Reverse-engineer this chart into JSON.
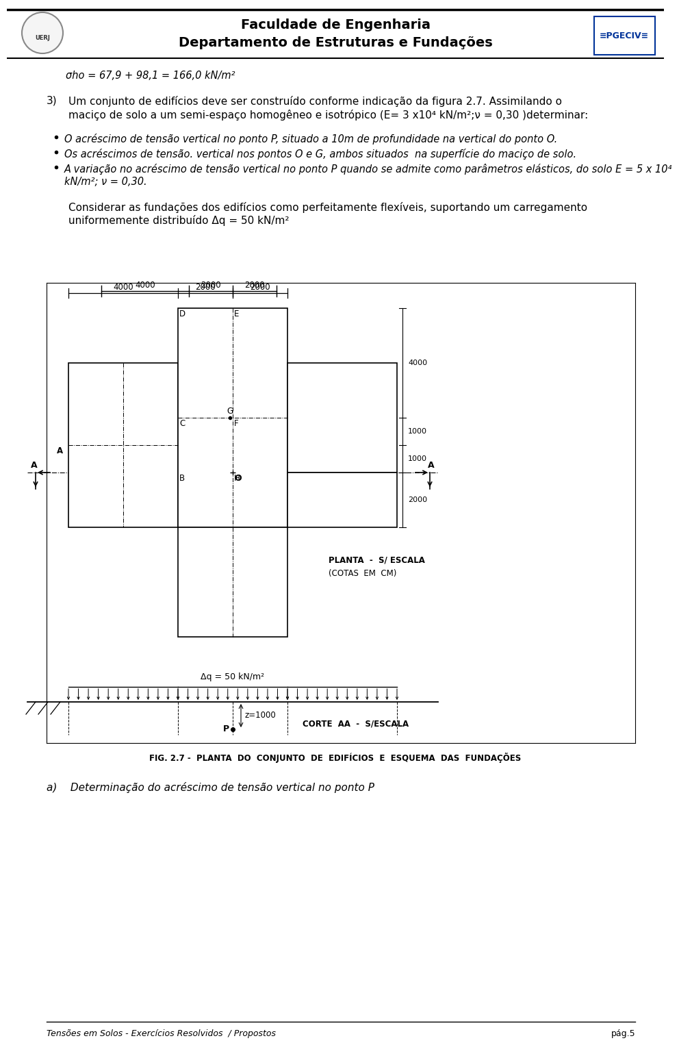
{
  "bg_color": "#ffffff",
  "header_title1": "Faculdade de Engenharia",
  "header_title2": "Departamento de Estruturas e Fundações",
  "footer_text_left": "Tensões em Solos - Exercícios Resolvidos  / Propostos",
  "footer_text_right": "pág.5",
  "sigma_line": "σho = 67,9 + 98,1 = 166,0 kN/m²",
  "problem_number": "3)",
  "problem_text1": "Um conjunto de edifícios deve ser construído conforme indicação da figura 2.7. Assimilando o",
  "problem_text2": "maciço de solo a um semi-espaço homogêneo e isotrópico (E= 3 x10⁴ kN/m²;ν = 0,30 )determinar:",
  "bullet1": "O acréscimo de tensão vertical no ponto P, situado a 10m de profundidade na vertical do ponto O.",
  "bullet2": "Os acréscimos de tensão. vertical nos pontos O e G, ambos situados  na superfície do maciço de solo.",
  "bullet3_line1": "A variação no acréscimo de tensão vertical no ponto P quando se admite como parâmetros elásticos, do solo E = 5 x 10⁴",
  "bullet3_line2": "kN/m²; ν = 0,30.",
  "consider_text1": "Considerar as fundações dos edifícios como perfeitamente flexíveis, suportando um carregamento",
  "consider_text2": "uniformemente distribuído Δq = 50 kN/m²",
  "fig_caption": "FIG. 2.7 -  PLANTA  DO  CONJUNTO  DE  EDIFÍCIOS  E  ESQUEMA  DAS  FUNDAÇÕES",
  "section_a_label": "a)    Determinação do acréscimo de tensão vertical no ponto P",
  "planta_label": "PLANTA  -  S/ ESCALA",
  "planta_sub": "(COTAS  EM  CM)",
  "corte_label": "CORTE  AA  -  S/ESCALA",
  "delta_q_label": "Δq = 50 kN/m²",
  "z1000_label": "z=1000",
  "dim_4000": "4000",
  "dim_2000_1": "2000",
  "dim_2000_2": "2000",
  "dim_4000_r": "4000",
  "dim_1000": "1000",
  "dim_1000_2": "1000",
  "dim_2000_bot": "2000"
}
